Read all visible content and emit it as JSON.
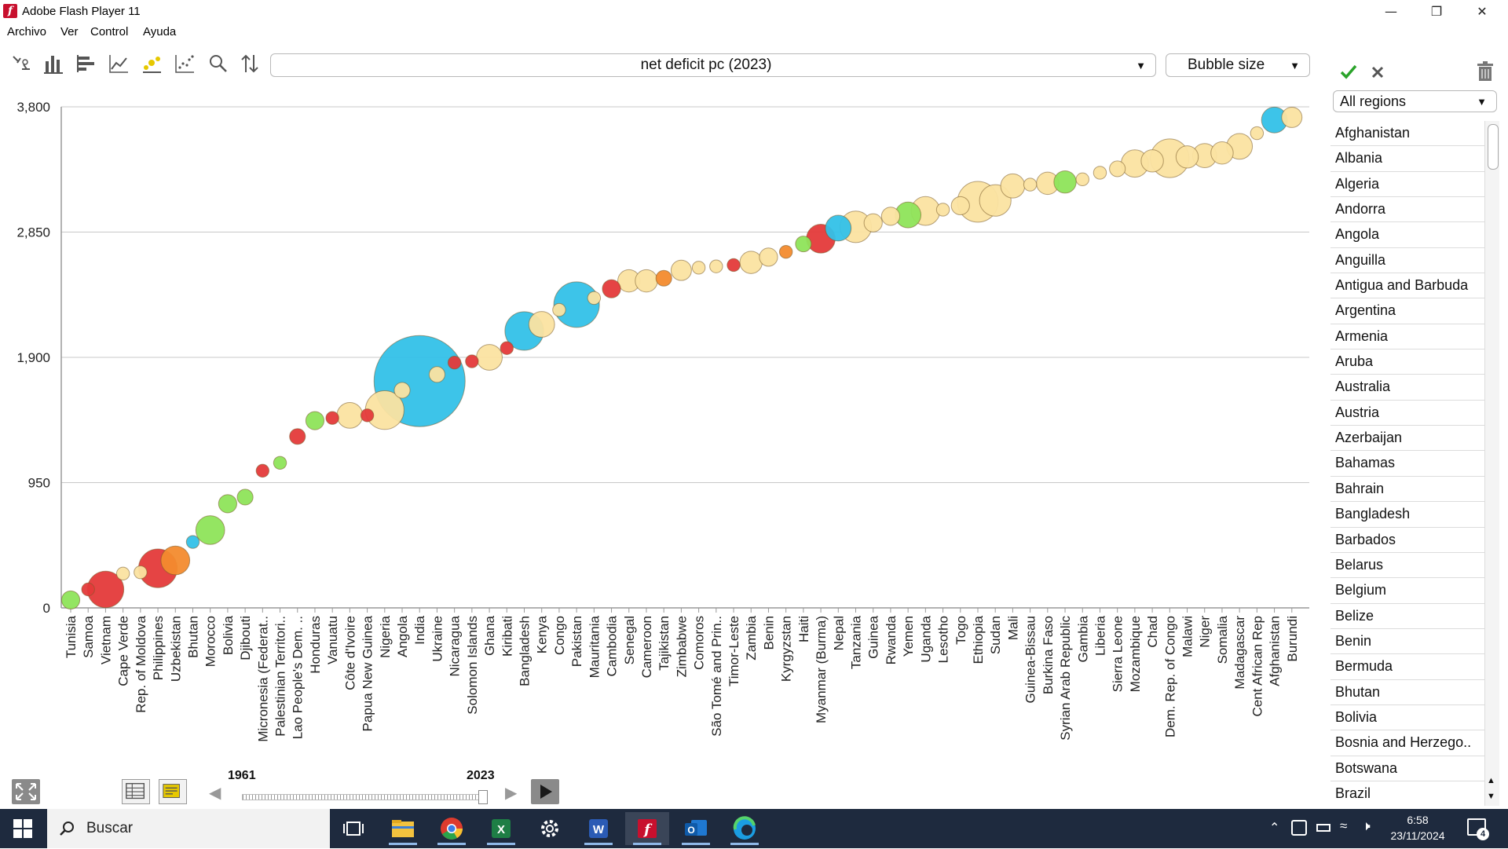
{
  "window": {
    "title": "Adobe Flash Player 11",
    "icon": "flash-icon"
  },
  "menu": [
    "Archivo",
    "Ver",
    "Control",
    "Ayuda"
  ],
  "toolbar": {
    "tools": [
      "bubble-chart-icon",
      "bar-chart-icon",
      "horizontal-bar-icon",
      "line-chart-icon",
      "bubble-ranked-icon",
      "scatter-icon",
      "search-icon",
      "sort-icon"
    ],
    "indicator": "net deficit pc (2023)",
    "bubble_size": "Bubble size",
    "active_tool_color": "#e6c800"
  },
  "panel": {
    "region_filter": "All regions",
    "countries": [
      "Afghanistan",
      "Albania",
      "Algeria",
      "Andorra",
      "Angola",
      "Anguilla",
      "Antigua and Barbuda",
      "Argentina",
      "Armenia",
      "Aruba",
      "Australia",
      "Austria",
      "Azerbaijan",
      "Bahamas",
      "Bahrain",
      "Bangladesh",
      "Barbados",
      "Belarus",
      "Belgium",
      "Belize",
      "Benin",
      "Bermuda",
      "Bhutan",
      "Bolivia",
      "Bosnia and Herzego..",
      "Botswana",
      "Brazil"
    ]
  },
  "timeline": {
    "start_year": "1961",
    "end_year": "2023",
    "position": 1.0
  },
  "taskbar": {
    "search_placeholder": "Buscar",
    "time": "6:58",
    "date": "23/11/2024",
    "notifications": "4"
  },
  "chart_data": {
    "type": "scatter",
    "title": "",
    "xlabel": "",
    "ylabel": "",
    "ylim": [
      0,
      3800
    ],
    "yticks": [
      0,
      950,
      1900,
      2850,
      3800
    ],
    "ytick_labels": [
      "0",
      "950",
      "1,900",
      "2,850",
      "3,800"
    ],
    "grid": true,
    "colors": {
      "asia": "#33c1e8",
      "africa": "#fbe3a1",
      "americas": "#8ee45a",
      "europe": "#f38b2e",
      "oceania_mideast": "#e43a3a"
    },
    "categories": [
      "Tunisia",
      "Samoa",
      "Vietnam",
      "Cape Verde",
      "Rep. of Moldova",
      "Philippines",
      "Uzbekistan",
      "Bhutan",
      "Morocco",
      "Bolivia",
      "Djibouti",
      "Micronesia (Federat..",
      "Palestinian Territori..",
      "Lao People's Dem. ..",
      "Honduras",
      "Vanuatu",
      "Côte d'Ivoire",
      "Papua New Guinea",
      "Nigeria",
      "Angola",
      "India",
      "Ukraine",
      "Nicaragua",
      "Solomon Islands",
      "Ghana",
      "Kiribati",
      "Bangladesh",
      "Kenya",
      "Congo",
      "Pakistan",
      "Mauritania",
      "Cambodia",
      "Senegal",
      "Cameroon",
      "Tajikistan",
      "Zimbabwe",
      "Comoros",
      "São Tomé and Prin..",
      "Timor-Leste",
      "Zambia",
      "Benin",
      "Kyrgyzstan",
      "Haiti",
      "Myanmar (Burma)",
      "Nepal",
      "Tanzania",
      "Guinea",
      "Rwanda",
      "Yemen",
      "Uganda",
      "Lesotho",
      "Togo",
      "Ethiopia",
      "Sudan",
      "Mali",
      "Guinea-Bissau",
      "Burkina Faso",
      "Syrian Arab Republic",
      "Gambia",
      "Liberia",
      "Sierra Leone",
      "Mozambique",
      "Chad",
      "Dem. Rep. of Congo",
      "Malawi",
      "Niger",
      "Somalia",
      "Madagascar",
      "Cent African Rep",
      "Afghanistan",
      "Burundi"
    ],
    "series": [
      {
        "values": [
          60,
          140,
          140,
          260,
          270,
          300,
          360,
          500,
          590,
          790,
          840,
          1040,
          1100,
          1300,
          1420,
          1440,
          1460,
          1460,
          1500,
          1650,
          1720,
          1770,
          1860,
          1870,
          1900,
          1970,
          2100,
          2150,
          2260,
          2300,
          2350,
          2420,
          2480,
          2480,
          2500,
          2560,
          2580,
          2590,
          2600,
          2620,
          2660,
          2700,
          2760,
          2800,
          2880,
          2890,
          2920,
          2970,
          2980,
          3010,
          3020,
          3050,
          3080,
          3090,
          3200,
          3210,
          3220,
          3230,
          3250,
          3300,
          3330,
          3370,
          3390,
          3410,
          3420,
          3430,
          3450,
          3500,
          3600,
          3700,
          3720
        ],
        "sizes": [
          4,
          2,
          16,
          2,
          2,
          18,
          10,
          2,
          10,
          4,
          3,
          2,
          2,
          3,
          4,
          2,
          8,
          2,
          18,
          3,
          100,
          3,
          2,
          2,
          8,
          2,
          18,
          8,
          2,
          25,
          2,
          4,
          6,
          6,
          3,
          5,
          2,
          2,
          2,
          6,
          4,
          2,
          3,
          10,
          8,
          12,
          4,
          4,
          8,
          10,
          2,
          4,
          20,
          12,
          7,
          2,
          6,
          6,
          2,
          2,
          3,
          9,
          6,
          18,
          6,
          7,
          6,
          8,
          2,
          8,
          5
        ],
        "groups": [
          "americas",
          "oceania_mideast",
          "oceania_mideast",
          "africa",
          "africa",
          "oceania_mideast",
          "europe",
          "asia",
          "americas",
          "americas",
          "americas",
          "oceania_mideast",
          "americas",
          "oceania_mideast",
          "americas",
          "oceania_mideast",
          "africa",
          "oceania_mideast",
          "africa",
          "africa",
          "asia",
          "africa",
          "oceania_mideast",
          "oceania_mideast",
          "africa",
          "oceania_mideast",
          "asia",
          "africa",
          "africa",
          "asia",
          "africa",
          "oceania_mideast",
          "africa",
          "africa",
          "europe",
          "africa",
          "africa",
          "africa",
          "oceania_mideast",
          "africa",
          "africa",
          "europe",
          "americas",
          "oceania_mideast",
          "asia",
          "africa",
          "africa",
          "africa",
          "americas",
          "africa",
          "africa",
          "africa",
          "africa",
          "africa",
          "africa",
          "africa",
          "africa",
          "americas",
          "africa",
          "africa",
          "africa",
          "africa",
          "africa",
          "africa",
          "africa",
          "africa",
          "africa",
          "africa",
          "africa",
          "asia",
          "africa"
        ]
      }
    ]
  }
}
